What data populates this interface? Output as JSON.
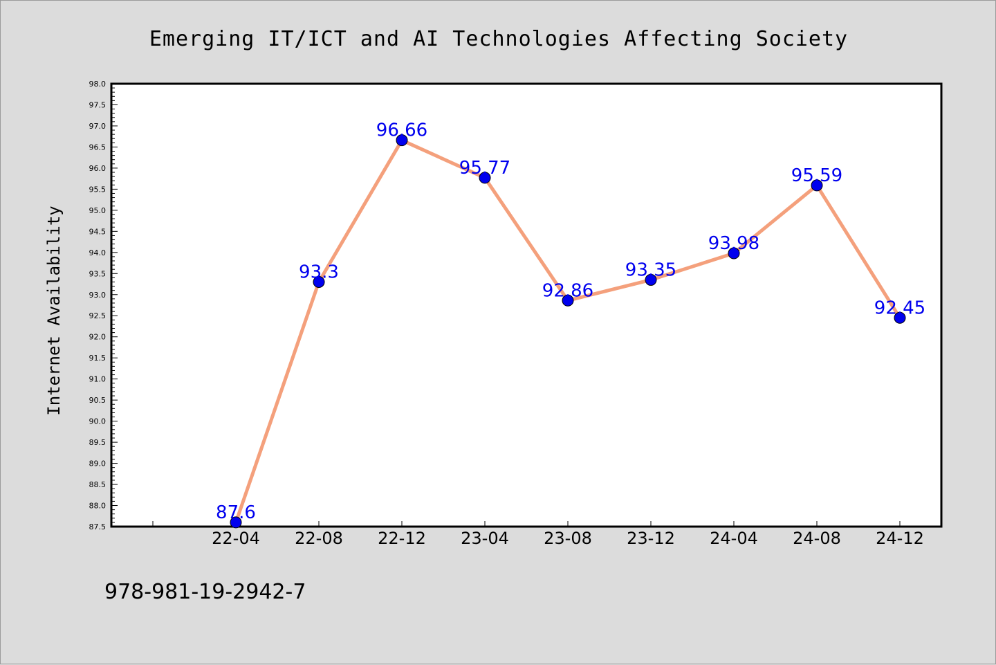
{
  "chart_data": {
    "type": "line",
    "title": "Emerging IT/ICT and AI Technologies Affecting Society",
    "ylabel": "Internet Availability",
    "xlabel": "",
    "x": [
      "22-04",
      "22-08",
      "22-12",
      "23-04",
      "23-08",
      "23-12",
      "24-04",
      "24-08",
      "24-12"
    ],
    "series": [
      {
        "values": [
          87.6,
          93.3,
          96.66,
          95.77,
          92.86,
          93.35,
          93.98,
          95.59,
          92.45
        ],
        "data_labels": [
          "87.6",
          "93.3",
          "96.66",
          "95.77",
          "92.86",
          "93.35",
          "93.98",
          "95.59",
          "92.45"
        ],
        "line_color": "#f4a07c",
        "marker_color": "#0000ee"
      }
    ],
    "ylim": [
      87.5,
      98.0
    ],
    "yticks": [
      "87.5",
      "88.0",
      "88.5",
      "89.0",
      "89.5",
      "90.0",
      "90.5",
      "91.0",
      "91.5",
      "92.0",
      "92.5",
      "93.0",
      "93.5",
      "94.0",
      "94.5",
      "95.0",
      "95.5",
      "96.0",
      "96.5",
      "97.0",
      "97.5",
      "98.0"
    ],
    "grid": false,
    "label_color": "#0000ee"
  },
  "footer": {
    "text": "978-981-19-2942-7"
  }
}
